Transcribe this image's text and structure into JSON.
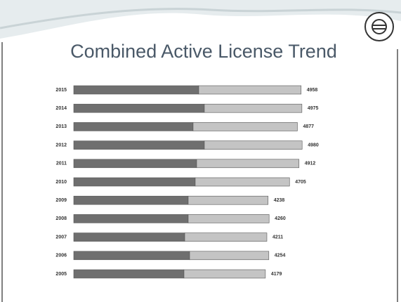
{
  "chart_data": {
    "type": "stacked-barh",
    "title": "Combined Active License Trend",
    "categories": [
      "2015",
      "2014",
      "2013",
      "2012",
      "2011",
      "2010",
      "2009",
      "2008",
      "2007",
      "2006",
      "2005"
    ],
    "series": [
      {
        "color": "#6f6f6f",
        "values": [
          2726,
          2848,
          2603,
          2848,
          2680,
          2649,
          2496,
          2496,
          2420,
          2527,
          2404
        ]
      },
      {
        "color": "#c4c4c4",
        "values": [
          2232,
          2127,
          2274,
          2132,
          2232,
          2056,
          1742,
          1764,
          1791,
          1727,
          1775
        ]
      }
    ],
    "totals": [
      4958,
      4975,
      4877,
      4980,
      4912,
      4705,
      4238,
      4260,
      4211,
      4254,
      4179
    ],
    "xlim": [
      0,
      5000
    ]
  }
}
